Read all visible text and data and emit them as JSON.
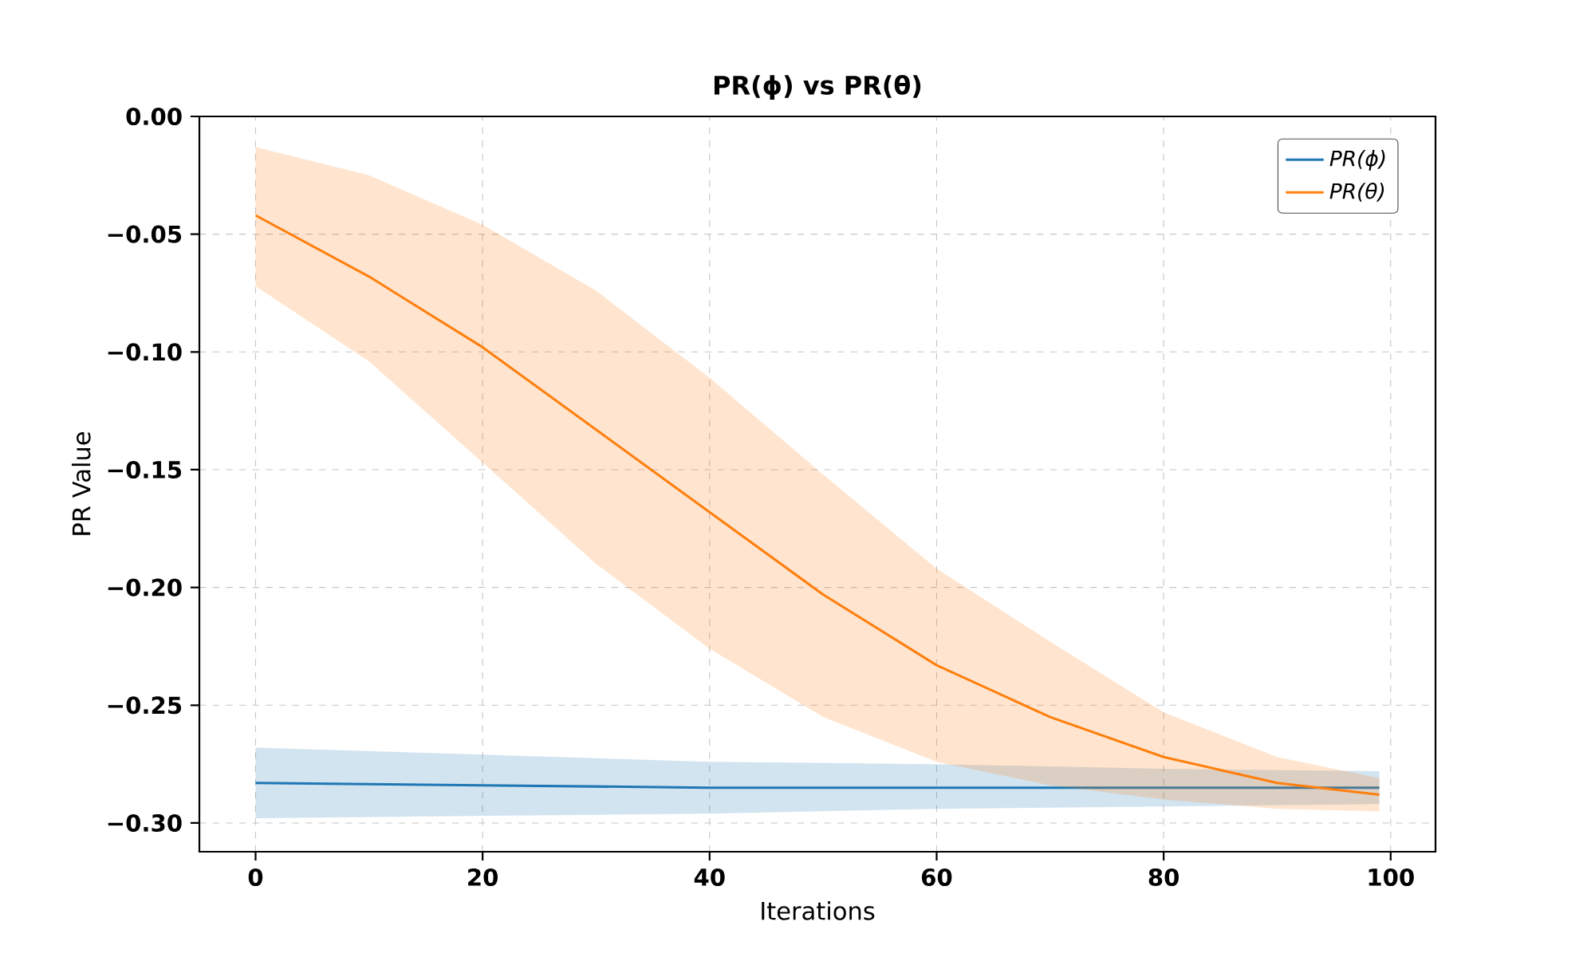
{
  "chart_data": {
    "type": "line",
    "title": "PR(ϕ) vs PR(θ)",
    "xlabel": "Iterations",
    "ylabel": "PR Value",
    "xlim": [
      -4.95,
      103.95
    ],
    "ylim": [
      -0.3122,
      0.0
    ],
    "xticks": [
      0,
      20,
      40,
      60,
      80,
      100
    ],
    "yticks": [
      {
        "value": 0.0,
        "label": "0.00"
      },
      {
        "value": -0.05,
        "label": "−0.05"
      },
      {
        "value": -0.1,
        "label": "−0.10"
      },
      {
        "value": -0.15,
        "label": "−0.15"
      },
      {
        "value": -0.2,
        "label": "−0.20"
      },
      {
        "value": -0.25,
        "label": "−0.25"
      },
      {
        "value": -0.3,
        "label": "−0.30"
      }
    ],
    "grid": true,
    "legend": "top right",
    "series": [
      {
        "name": "PR(ϕ)",
        "color": "#1f77b4",
        "x": [
          0,
          20,
          40,
          60,
          80,
          99
        ],
        "values": [
          -0.283,
          -0.284,
          -0.285,
          -0.285,
          -0.285,
          -0.285
        ],
        "upper": [
          -0.268,
          -0.271,
          -0.274,
          -0.275,
          -0.277,
          -0.278
        ],
        "lower": [
          -0.298,
          -0.297,
          -0.296,
          -0.294,
          -0.293,
          -0.292
        ]
      },
      {
        "name": "PR(θ)",
        "color": "#ff7f0e",
        "x": [
          0,
          10,
          20,
          30,
          40,
          50,
          60,
          70,
          80,
          90,
          99
        ],
        "values": [
          -0.042,
          -0.068,
          -0.098,
          -0.133,
          -0.168,
          -0.203,
          -0.233,
          -0.255,
          -0.272,
          -0.283,
          -0.288
        ],
        "upper": [
          -0.013,
          -0.025,
          -0.046,
          -0.074,
          -0.111,
          -0.152,
          -0.192,
          -0.223,
          -0.253,
          -0.272,
          -0.281
        ],
        "lower": [
          -0.072,
          -0.104,
          -0.147,
          -0.19,
          -0.226,
          -0.255,
          -0.274,
          -0.284,
          -0.29,
          -0.294,
          -0.295
        ]
      }
    ]
  }
}
